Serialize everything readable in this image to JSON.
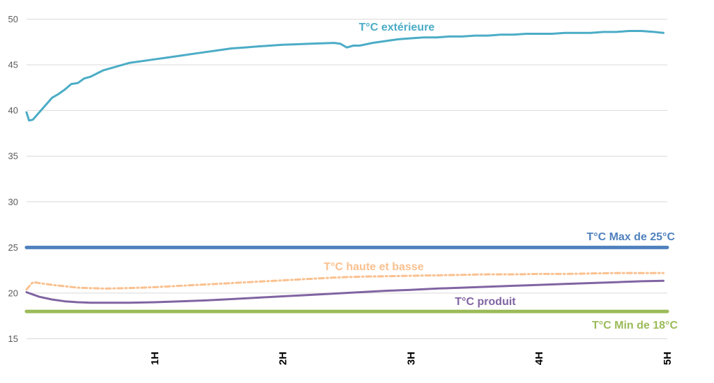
{
  "chart_data": {
    "type": "line",
    "title": "",
    "xlabel": "",
    "ylabel": "",
    "xlim": [
      0,
      5
    ],
    "ylim": [
      15,
      50
    ],
    "y_ticks": [
      15,
      20,
      25,
      30,
      35,
      40,
      45,
      50
    ],
    "x_tick_labels": [
      "1H",
      "2H",
      "3H",
      "4H",
      "5H"
    ],
    "grid": "horizontal",
    "series": [
      {
        "name": "T°C extérieure",
        "color": "#4bacc6",
        "style": "solid",
        "x": [
          0,
          0.02,
          0.05,
          0.1,
          0.15,
          0.2,
          0.25,
          0.3,
          0.35,
          0.4,
          0.45,
          0.5,
          0.6,
          0.7,
          0.8,
          0.9,
          1.0,
          1.1,
          1.2,
          1.3,
          1.4,
          1.5,
          1.6,
          1.7,
          1.8,
          1.9,
          2.0,
          2.1,
          2.2,
          2.3,
          2.4,
          2.45,
          2.5,
          2.55,
          2.6,
          2.7,
          2.8,
          2.9,
          3.0,
          3.1,
          3.2,
          3.3,
          3.4,
          3.5,
          3.6,
          3.7,
          3.8,
          3.9,
          4.0,
          4.1,
          4.2,
          4.3,
          4.4,
          4.5,
          4.6,
          4.7,
          4.8,
          4.9,
          4.97
        ],
        "values": [
          39.8,
          38.9,
          39.0,
          39.8,
          40.6,
          41.4,
          41.8,
          42.3,
          42.9,
          43.0,
          43.5,
          43.7,
          44.4,
          44.8,
          45.2,
          45.4,
          45.6,
          45.8,
          46.0,
          46.2,
          46.4,
          46.6,
          46.8,
          46.9,
          47.0,
          47.1,
          47.2,
          47.25,
          47.3,
          47.35,
          47.4,
          47.3,
          46.9,
          47.1,
          47.1,
          47.4,
          47.6,
          47.8,
          47.9,
          48.0,
          48.0,
          48.1,
          48.1,
          48.2,
          48.2,
          48.3,
          48.3,
          48.4,
          48.4,
          48.4,
          48.5,
          48.5,
          48.5,
          48.6,
          48.6,
          48.7,
          48.7,
          48.6,
          48.5
        ]
      },
      {
        "name": "T°C Max de 25°C",
        "color": "#4f81bd",
        "style": "solid-thick",
        "x": [
          0,
          5
        ],
        "values": [
          25,
          25
        ]
      },
      {
        "name": "T°C haute et basse",
        "color": "#fac08f",
        "style": "dash-dot",
        "x": [
          0,
          0.05,
          0.2,
          0.4,
          0.6,
          0.8,
          1.0,
          1.2,
          1.4,
          1.6,
          1.8,
          2.0,
          2.2,
          2.4,
          2.6,
          2.8,
          3.0,
          3.2,
          3.4,
          3.6,
          3.8,
          4.0,
          4.2,
          4.4,
          4.6,
          4.8,
          4.97
        ],
        "values": [
          20.4,
          21.2,
          20.9,
          20.6,
          20.5,
          20.55,
          20.65,
          20.8,
          20.95,
          21.1,
          21.25,
          21.4,
          21.55,
          21.7,
          21.8,
          21.85,
          21.9,
          21.95,
          22.0,
          22.05,
          22.05,
          22.1,
          22.1,
          22.15,
          22.2,
          22.2,
          22.2
        ]
      },
      {
        "name": "T°C produit",
        "color": "#8064a2",
        "style": "solid",
        "x": [
          0,
          0.1,
          0.2,
          0.3,
          0.4,
          0.5,
          0.6,
          0.8,
          1.0,
          1.2,
          1.4,
          1.6,
          1.8,
          2.0,
          2.2,
          2.4,
          2.6,
          2.8,
          3.0,
          3.2,
          3.4,
          3.6,
          3.8,
          4.0,
          4.2,
          4.4,
          4.6,
          4.8,
          4.97
        ],
        "values": [
          20.1,
          19.6,
          19.3,
          19.1,
          19.0,
          18.95,
          18.95,
          18.95,
          19.0,
          19.1,
          19.2,
          19.35,
          19.5,
          19.65,
          19.8,
          19.95,
          20.1,
          20.25,
          20.35,
          20.5,
          20.6,
          20.7,
          20.8,
          20.9,
          21.0,
          21.1,
          21.2,
          21.3,
          21.35
        ]
      },
      {
        "name": "T°C Min de 18°C",
        "color": "#9bbb59",
        "style": "solid-thick",
        "x": [
          0,
          5
        ],
        "values": [
          18,
          18
        ]
      }
    ],
    "annotations": [
      {
        "text": "T°C extérieure",
        "series": 0
      },
      {
        "text": "T°C Max de 25°C",
        "series": 1
      },
      {
        "text": "T°C haute et basse",
        "series": 2
      },
      {
        "text": "T°C produit",
        "series": 3
      },
      {
        "text": "T°C Min de 18°C",
        "series": 4
      }
    ]
  }
}
